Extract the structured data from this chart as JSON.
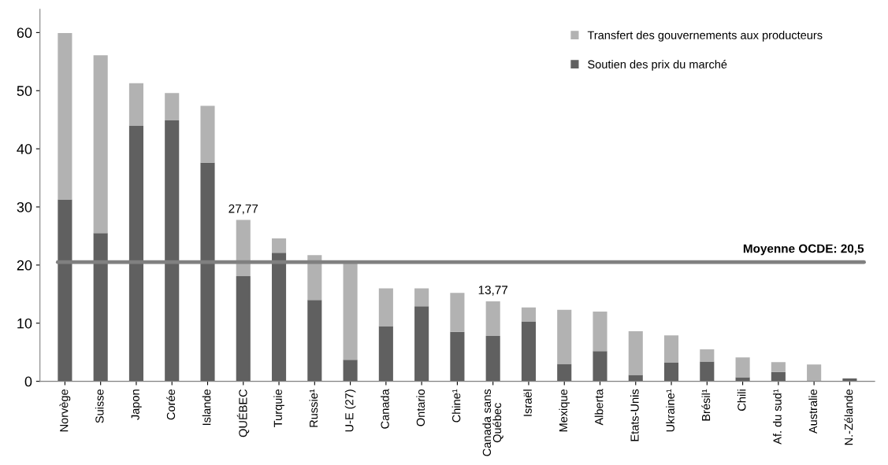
{
  "chart_data": {
    "type": "bar",
    "stacked": true,
    "categories": [
      "Norvège",
      "Suisse",
      "Japon",
      "Corée",
      "Islande",
      "QUÉBEC",
      "Turquie",
      "Russie¹",
      "U-E (27)",
      "Canada",
      "Ontario",
      "Chine¹",
      "Canada sans\nQuébec",
      "Israël",
      "Mexique",
      "Alberta",
      "Etats-Unis",
      "Ukraine¹",
      "Brésil¹",
      "Chili",
      "Af. du sud¹",
      "Australie",
      "N.-Zélande"
    ],
    "series": [
      {
        "name": "Soutien des prix du marché",
        "color": "#606060",
        "values": [
          31.3,
          25.5,
          44.0,
          44.9,
          37.6,
          18.1,
          22.1,
          14.0,
          3.7,
          9.5,
          12.9,
          8.5,
          7.8,
          10.3,
          3.0,
          5.2,
          1.1,
          3.2,
          3.4,
          0.7,
          1.6,
          0,
          0.5
        ]
      },
      {
        "name": "Transfert des gouvernements aux producteurs",
        "color": "#b2b2b2",
        "values": [
          28.6,
          30.6,
          7.3,
          4.7,
          9.8,
          9.67,
          2.5,
          7.7,
          16.6,
          6.5,
          3.1,
          6.7,
          5.97,
          2.4,
          9.3,
          6.8,
          7.5,
          4.7,
          2.1,
          3.4,
          1.7,
          2.9,
          null
        ]
      }
    ],
    "totals": [
      null,
      null,
      null,
      null,
      null,
      "27,77",
      null,
      null,
      null,
      null,
      null,
      null,
      "13,77",
      null,
      null,
      null,
      null,
      null,
      null,
      null,
      null,
      null,
      null
    ],
    "ref_lines": [
      {
        "axis": "y",
        "value": 20.5,
        "label": "Moyenne OCDE: 20,5",
        "color": "#808080"
      }
    ],
    "ylim": [
      0,
      64
    ],
    "yticks": [
      0,
      10,
      20,
      30,
      40,
      50,
      60
    ],
    "legend": "top right",
    "grid": false
  }
}
